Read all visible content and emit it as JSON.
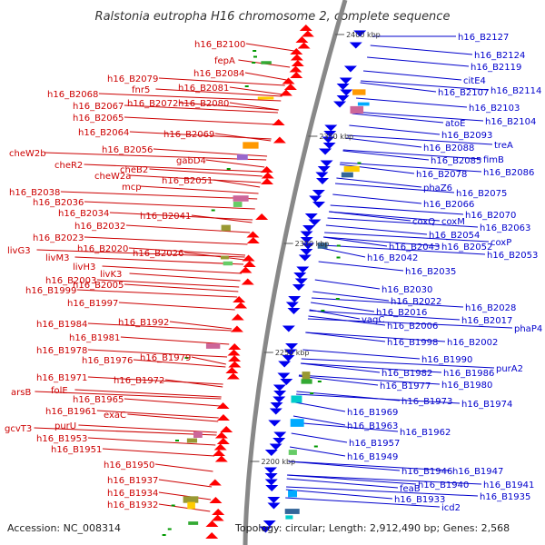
{
  "title": "Ralstonia eutropha H16 chromosome 2, complete sequence",
  "footer": {
    "accession": "Accession: NC_008314",
    "topology": "Topology: circular; Length: 2,912,490 bp; Genes: 2,568"
  },
  "colors": {
    "left_labels": "#cc0000",
    "right_labels": "#0000cc",
    "backbone": "#888888"
  },
  "kbp_marks": [
    "2400 kbp",
    "2350 kbp",
    "2300 kbp",
    "2250 kbp",
    "2200 kbp"
  ],
  "left_labels": [
    "h16_B2100",
    "fepA",
    "h16_B2084",
    "h16_B2079",
    "fnr5",
    "h16_B2081",
    "h16_B2068",
    "h16_B2072",
    "h16_B2080",
    "h16_B2067",
    "h16_B2065",
    "h16_B2064",
    "h16_B2069",
    "h16_B2056",
    "gabD4",
    "cheW2b",
    "cheR2",
    "cheB2",
    "cheW2a",
    "h16_B2051",
    "mcp",
    "h16_B2038",
    "h16_B2036",
    "h16_B2041",
    "h16_B2034",
    "h16_B2032",
    "h16_B2023",
    "h16_B2020",
    "h16_B2026",
    "livG3",
    "livM3",
    "livH3",
    "livK3",
    "h16_B2003",
    "h16_B2005",
    "h16_B1999",
    "h16_B1997",
    "h16_B1992",
    "h16_B1984",
    "h16_B1981",
    "h16_B1978",
    "h16_B1979",
    "h16_B1976",
    "h16_B1972",
    "h16_B1971",
    "arsB",
    "folE",
    "h16_B1965",
    "h16_B1961",
    "exaC",
    "gcvT3",
    "purU",
    "h16_B1953",
    "h16_B1951",
    "h16_B1950",
    "h16_B1937",
    "h16_B1934",
    "h16_B1932"
  ],
  "right_labels": [
    "h16_B2127",
    "h16_B2124",
    "h16_B2119",
    "citE4",
    "h16_B2114",
    "h16_B2107",
    "h16_B2103",
    "atoE",
    "h16_B2104",
    "h16_B2093",
    "treA",
    "h16_B2088",
    "fimB",
    "h16_B2085",
    "h16_B2086",
    "h16_B2078",
    "phaZ6",
    "h16_B2075",
    "h16_B2066",
    "h16_B2070",
    "coxQ",
    "coxM",
    "h16_B2063",
    "h16_B2054",
    "coxP",
    "h16_B2043",
    "h16_B2052",
    "h16_B2053",
    "h16_B2042",
    "h16_B2035",
    "h16_B2030",
    "h16_B2022",
    "h16_B2028",
    "h16_B2016",
    "h16_B2017",
    "phaP4",
    "vagC",
    "h16_B2006",
    "h16_B1998",
    "h16_B2002",
    "h16_B1990",
    "purA2",
    "h16_B1982",
    "h16_B1986",
    "h16_B1977",
    "h16_B1980",
    "h16_B1973",
    "h16_B1974",
    "h16_B1969",
    "h16_B1963",
    "h16_B1962",
    "h16_B1957",
    "h16_B1949",
    "h16_B1946",
    "h16_B1947",
    "h16_B1941",
    "h16_B1940",
    "feaB",
    "h16_B1935",
    "h16_B1933",
    "icd2"
  ]
}
